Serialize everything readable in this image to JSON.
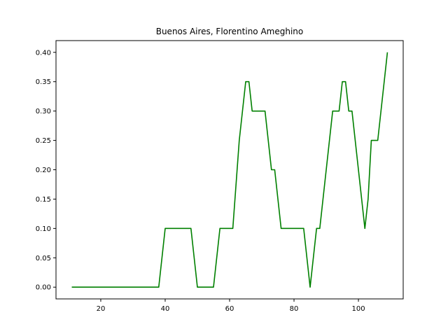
{
  "chart_data": {
    "type": "line",
    "title": "Buenos Aires, Florentino Ameghino",
    "xlabel": "",
    "ylabel": "",
    "xlim": [
      6.1,
      113.9
    ],
    "ylim": [
      -0.02,
      0.42
    ],
    "xticks": [
      20,
      40,
      60,
      80,
      100
    ],
    "yticks": [
      0.0,
      0.05,
      0.1,
      0.15,
      0.2,
      0.25,
      0.3,
      0.35,
      0.4
    ],
    "grid": false,
    "series": [
      {
        "color": "#008000",
        "x": [
          11,
          38,
          40,
          48,
          50,
          55,
          57,
          61,
          63,
          65,
          66,
          67,
          71,
          73,
          74,
          76,
          83,
          85,
          87,
          88,
          92,
          94,
          95,
          96,
          97,
          98,
          102,
          103,
          104,
          106,
          109
        ],
        "y": [
          0.0,
          0.0,
          0.1,
          0.1,
          0.0,
          0.0,
          0.1,
          0.1,
          0.25,
          0.35,
          0.35,
          0.3,
          0.3,
          0.2,
          0.2,
          0.1,
          0.1,
          0.0,
          0.1,
          0.1,
          0.3,
          0.3,
          0.35,
          0.35,
          0.3,
          0.3,
          0.1,
          0.15,
          0.25,
          0.25,
          0.4
        ]
      }
    ]
  }
}
